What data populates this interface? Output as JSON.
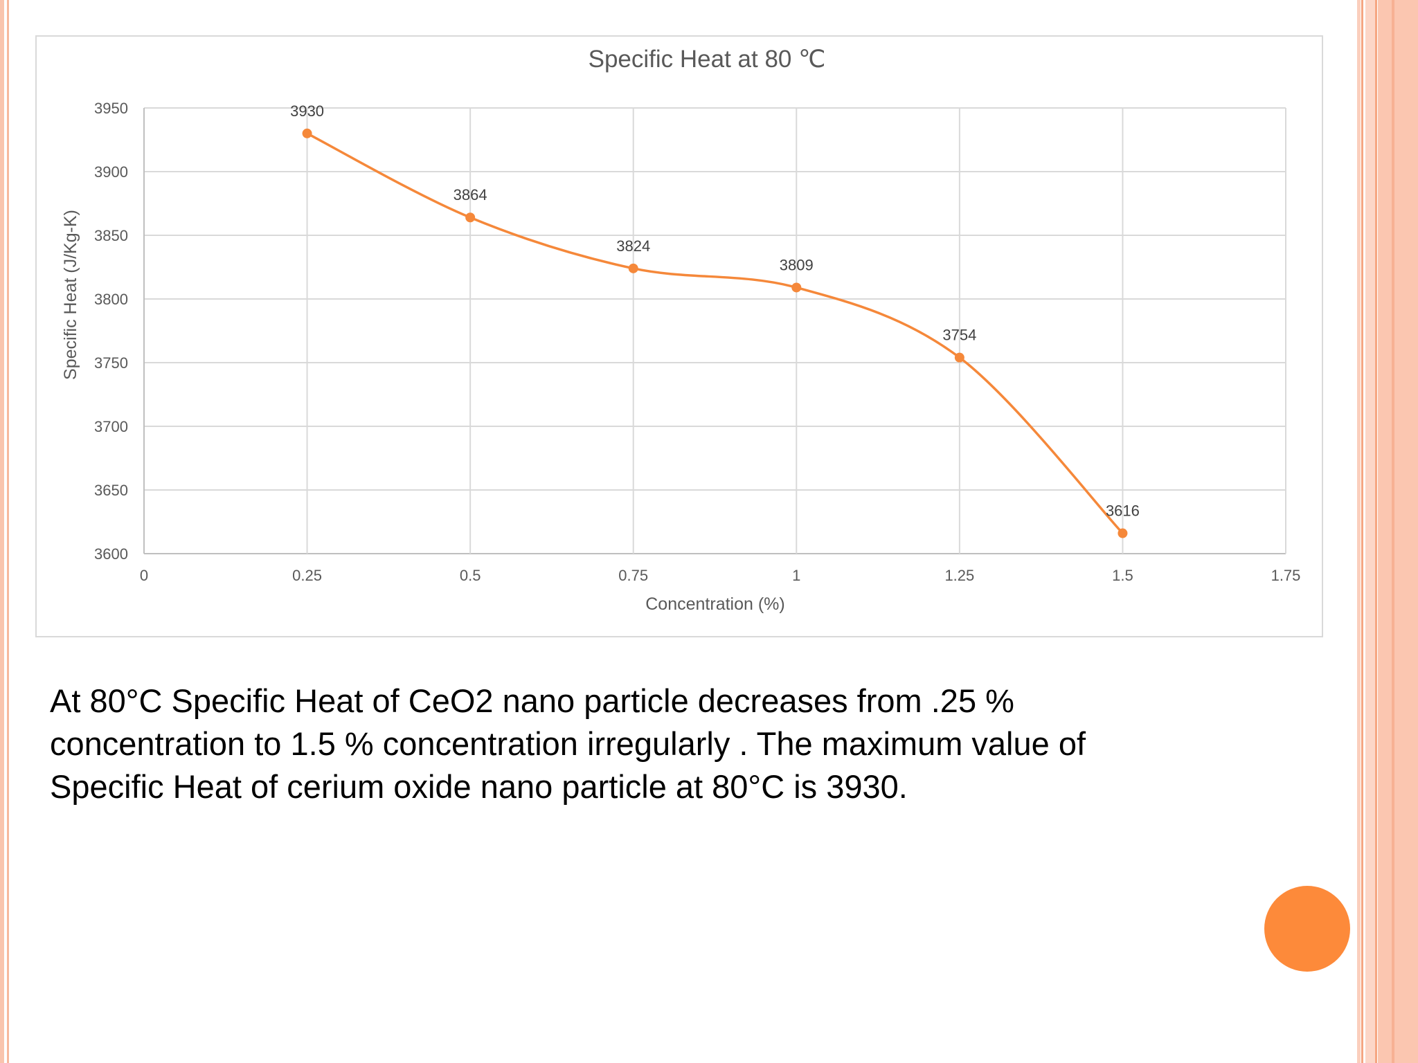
{
  "colors": {
    "series": "#f5883a",
    "grid": "#d9d9d9",
    "axis_text": "#595959",
    "accent": "#fd8a3a",
    "stripe": "#f9c4ad"
  },
  "chart_data": {
    "type": "scatter",
    "smooth": true,
    "title": "Specific Heat at 80 ℃",
    "xlabel": "Concentration (%)",
    "ylabel": "Specific Heat (J/Kg-K)",
    "xlim": [
      0,
      1.75
    ],
    "ylim": [
      3600,
      3950
    ],
    "x_ticks": [
      0,
      0.25,
      0.5,
      0.75,
      1,
      1.25,
      1.5,
      1.75
    ],
    "x_tick_labels": [
      "0",
      "0.25",
      "0.5",
      "0.75",
      "1",
      "1.25",
      "1.5",
      "1.75"
    ],
    "y_ticks": [
      3600,
      3650,
      3700,
      3750,
      3800,
      3850,
      3900,
      3950
    ],
    "y_tick_labels": [
      "3600",
      "3650",
      "3700",
      "3750",
      "3800",
      "3850",
      "3900",
      "3950"
    ],
    "grid": true,
    "series": [
      {
        "name": "Specific Heat",
        "x": [
          0.25,
          0.5,
          0.75,
          1,
          1.25,
          1.5
        ],
        "y": [
          3930,
          3864,
          3824,
          3809,
          3754,
          3616
        ],
        "labels": [
          "3930",
          "3864",
          "3824",
          "3809",
          "3754",
          "3616"
        ]
      }
    ]
  },
  "caption": {
    "line1": "At 80°C Specific Heat of CeO2 nano particle decreases from .25 %",
    "line2": "concentration to 1.5 % concentration irregularly . The maximum value of",
    "line3": "Specific Heat of cerium oxide nano particle at 80°C is 3930."
  }
}
